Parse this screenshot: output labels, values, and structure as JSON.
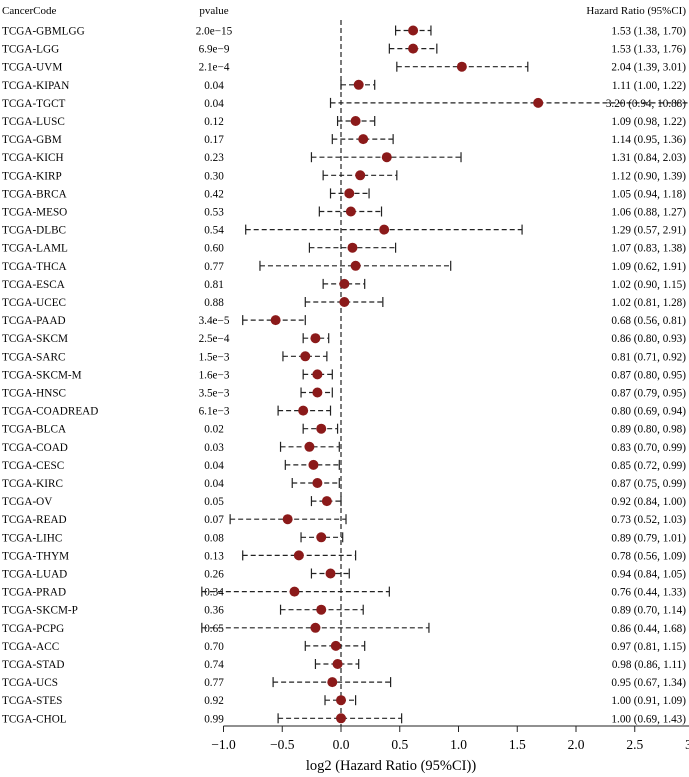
{
  "chart_data": {
    "type": "forest",
    "headers": {
      "code": "CancerCode",
      "pvalue": "pvalue",
      "hr": "Hazard Ratio (95%CI)"
    },
    "xlabel": "log2 (Hazard Ratio (95%CI))",
    "xlim": [
      -1.0,
      3.0
    ],
    "xticks": [
      -1.0,
      -0.5,
      0.0,
      0.5,
      1.0,
      1.5,
      2.0,
      2.5,
      3.0
    ],
    "xtick_labels": [
      "−1.0",
      "−0.5",
      "0.0",
      "0.5",
      "1.0",
      "1.5",
      "2.0",
      "2.5",
      "3.0"
    ],
    "reference_x": 0,
    "colors": {
      "point": "#8b1a1a",
      "line": "#222222"
    },
    "rows": [
      {
        "code": "TCGA-GBMLGG",
        "p": "2.0e−15",
        "hr": 1.53,
        "lo": 1.38,
        "hi": 1.7,
        "hr_text": "1.53 (1.38, 1.70)"
      },
      {
        "code": "TCGA-LGG",
        "p": "6.9e−9",
        "hr": 1.53,
        "lo": 1.33,
        "hi": 1.76,
        "hr_text": "1.53 (1.33, 1.76)"
      },
      {
        "code": "TCGA-UVM",
        "p": "2.1e−4",
        "hr": 2.04,
        "lo": 1.39,
        "hi": 3.01,
        "hr_text": "2.04 (1.39, 3.01)"
      },
      {
        "code": "TCGA-KIPAN",
        "p": "0.04",
        "hr": 1.11,
        "lo": 1.0,
        "hi": 1.22,
        "hr_text": "1.11 (1.00, 1.22)"
      },
      {
        "code": "TCGA-TGCT",
        "p": "0.04",
        "hr": 3.2,
        "lo": 0.94,
        "hi": 10.88,
        "hr_text": "3.20 (0.94, 10.88)"
      },
      {
        "code": "TCGA-LUSC",
        "p": "0.12",
        "hr": 1.09,
        "lo": 0.98,
        "hi": 1.22,
        "hr_text": "1.09 (0.98, 1.22)"
      },
      {
        "code": "TCGA-GBM",
        "p": "0.17",
        "hr": 1.14,
        "lo": 0.95,
        "hi": 1.36,
        "hr_text": "1.14 (0.95, 1.36)"
      },
      {
        "code": "TCGA-KICH",
        "p": "0.23",
        "hr": 1.31,
        "lo": 0.84,
        "hi": 2.03,
        "hr_text": "1.31 (0.84, 2.03)"
      },
      {
        "code": "TCGA-KIRP",
        "p": "0.30",
        "hr": 1.12,
        "lo": 0.9,
        "hi": 1.39,
        "hr_text": "1.12 (0.90, 1.39)"
      },
      {
        "code": "TCGA-BRCA",
        "p": "0.42",
        "hr": 1.05,
        "lo": 0.94,
        "hi": 1.18,
        "hr_text": "1.05 (0.94, 1.18)"
      },
      {
        "code": "TCGA-MESO",
        "p": "0.53",
        "hr": 1.06,
        "lo": 0.88,
        "hi": 1.27,
        "hr_text": "1.06 (0.88, 1.27)"
      },
      {
        "code": "TCGA-DLBC",
        "p": "0.54",
        "hr": 1.29,
        "lo": 0.57,
        "hi": 2.91,
        "hr_text": "1.29 (0.57, 2.91)"
      },
      {
        "code": "TCGA-LAML",
        "p": "0.60",
        "hr": 1.07,
        "lo": 0.83,
        "hi": 1.38,
        "hr_text": "1.07 (0.83, 1.38)"
      },
      {
        "code": "TCGA-THCA",
        "p": "0.77",
        "hr": 1.09,
        "lo": 0.62,
        "hi": 1.91,
        "hr_text": "1.09 (0.62, 1.91)"
      },
      {
        "code": "TCGA-ESCA",
        "p": "0.81",
        "hr": 1.02,
        "lo": 0.9,
        "hi": 1.15,
        "hr_text": "1.02 (0.90, 1.15)"
      },
      {
        "code": "TCGA-UCEC",
        "p": "0.88",
        "hr": 1.02,
        "lo": 0.81,
        "hi": 1.28,
        "hr_text": "1.02 (0.81, 1.28)"
      },
      {
        "code": "TCGA-PAAD",
        "p": "3.4e−5",
        "hr": 0.68,
        "lo": 0.56,
        "hi": 0.81,
        "hr_text": "0.68 (0.56, 0.81)"
      },
      {
        "code": "TCGA-SKCM",
        "p": "2.5e−4",
        "hr": 0.86,
        "lo": 0.8,
        "hi": 0.93,
        "hr_text": "0.86 (0.80, 0.93)"
      },
      {
        "code": "TCGA-SARC",
        "p": "1.5e−3",
        "hr": 0.81,
        "lo": 0.71,
        "hi": 0.92,
        "hr_text": "0.81 (0.71, 0.92)"
      },
      {
        "code": "TCGA-SKCM-M",
        "p": "1.6e−3",
        "hr": 0.87,
        "lo": 0.8,
        "hi": 0.95,
        "hr_text": "0.87 (0.80, 0.95)"
      },
      {
        "code": "TCGA-HNSC",
        "p": "3.5e−3",
        "hr": 0.87,
        "lo": 0.79,
        "hi": 0.95,
        "hr_text": "0.87 (0.79, 0.95)"
      },
      {
        "code": "TCGA-COADREAD",
        "p": "6.1e−3",
        "hr": 0.8,
        "lo": 0.69,
        "hi": 0.94,
        "hr_text": "0.80 (0.69, 0.94)"
      },
      {
        "code": "TCGA-BLCA",
        "p": "0.02",
        "hr": 0.89,
        "lo": 0.8,
        "hi": 0.98,
        "hr_text": "0.89 (0.80, 0.98)"
      },
      {
        "code": "TCGA-COAD",
        "p": "0.03",
        "hr": 0.83,
        "lo": 0.7,
        "hi": 0.99,
        "hr_text": "0.83 (0.70, 0.99)"
      },
      {
        "code": "TCGA-CESC",
        "p": "0.04",
        "hr": 0.85,
        "lo": 0.72,
        "hi": 0.99,
        "hr_text": "0.85 (0.72, 0.99)"
      },
      {
        "code": "TCGA-KIRC",
        "p": "0.04",
        "hr": 0.87,
        "lo": 0.75,
        "hi": 0.99,
        "hr_text": "0.87 (0.75, 0.99)"
      },
      {
        "code": "TCGA-OV",
        "p": "0.05",
        "hr": 0.92,
        "lo": 0.84,
        "hi": 1.0,
        "hr_text": "0.92 (0.84, 1.00)"
      },
      {
        "code": "TCGA-READ",
        "p": "0.07",
        "hr": 0.73,
        "lo": 0.52,
        "hi": 1.03,
        "hr_text": "0.73 (0.52, 1.03)"
      },
      {
        "code": "TCGA-LIHC",
        "p": "0.08",
        "hr": 0.89,
        "lo": 0.79,
        "hi": 1.01,
        "hr_text": "0.89 (0.79, 1.01)"
      },
      {
        "code": "TCGA-THYM",
        "p": "0.13",
        "hr": 0.78,
        "lo": 0.56,
        "hi": 1.09,
        "hr_text": "0.78 (0.56, 1.09)"
      },
      {
        "code": "TCGA-LUAD",
        "p": "0.26",
        "hr": 0.94,
        "lo": 0.84,
        "hi": 1.05,
        "hr_text": "0.94 (0.84, 1.05)"
      },
      {
        "code": "TCGA-PRAD",
        "p": "0.34",
        "hr": 0.76,
        "lo": 0.44,
        "hi": 1.33,
        "hr_text": "0.76 (0.44, 1.33)"
      },
      {
        "code": "TCGA-SKCM-P",
        "p": "0.36",
        "hr": 0.89,
        "lo": 0.7,
        "hi": 1.14,
        "hr_text": "0.89 (0.70, 1.14)"
      },
      {
        "code": "TCGA-PCPG",
        "p": "0.65",
        "hr": 0.86,
        "lo": 0.44,
        "hi": 1.68,
        "hr_text": "0.86 (0.44, 1.68)"
      },
      {
        "code": "TCGA-ACC",
        "p": "0.70",
        "hr": 0.97,
        "lo": 0.81,
        "hi": 1.15,
        "hr_text": "0.97 (0.81, 1.15)"
      },
      {
        "code": "TCGA-STAD",
        "p": "0.74",
        "hr": 0.98,
        "lo": 0.86,
        "hi": 1.11,
        "hr_text": "0.98 (0.86, 1.11)"
      },
      {
        "code": "TCGA-UCS",
        "p": "0.77",
        "hr": 0.95,
        "lo": 0.67,
        "hi": 1.34,
        "hr_text": "0.95 (0.67, 1.34)"
      },
      {
        "code": "TCGA-STES",
        "p": "0.92",
        "hr": 1.0,
        "lo": 0.91,
        "hi": 1.09,
        "hr_text": "1.00 (0.91, 1.09)"
      },
      {
        "code": "TCGA-CHOL",
        "p": "0.99",
        "hr": 1.0,
        "lo": 0.69,
        "hi": 1.43,
        "hr_text": "1.00 (0.69, 1.43)"
      }
    ]
  }
}
